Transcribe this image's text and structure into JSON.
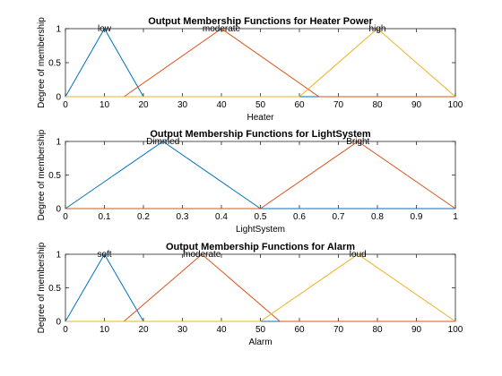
{
  "colors": {
    "series1": "#0072BD",
    "series2": "#D95319",
    "series3": "#EDB120",
    "axis": "#262626",
    "background": "#ffffff"
  },
  "chart_data": [
    {
      "type": "line",
      "title": "Output Membership Functions for Heater Power",
      "xlabel": "Heater",
      "ylabel": "Degree of membership",
      "xlim": [
        0,
        100
      ],
      "ylim": [
        0,
        1
      ],
      "xticks": [
        "0",
        "10",
        "20",
        "30",
        "40",
        "50",
        "60",
        "70",
        "80",
        "90",
        "100"
      ],
      "xtick_values": [
        0,
        10,
        20,
        30,
        40,
        50,
        60,
        70,
        80,
        90,
        100
      ],
      "yticks": [
        "0",
        "0.5",
        "1"
      ],
      "ytick_values": [
        0,
        0.5,
        1
      ],
      "grid": false,
      "series": [
        {
          "name": "low",
          "color": "#0072BD",
          "x": [
            0,
            10,
            20,
            100
          ],
          "y": [
            0,
            1,
            0,
            0
          ]
        },
        {
          "name": "moderate",
          "color": "#D95319",
          "x": [
            0,
            15,
            40,
            65,
            100
          ],
          "y": [
            0,
            0,
            1,
            0,
            0
          ]
        },
        {
          "name": "high",
          "color": "#EDB120",
          "x": [
            0,
            60,
            80,
            100
          ],
          "y": [
            0,
            0,
            1,
            0
          ]
        }
      ]
    },
    {
      "type": "line",
      "title": "Output Membership Functions for LightSystem",
      "xlabel": "LightSystem",
      "ylabel": "Degree of membership",
      "xlim": [
        0,
        1
      ],
      "ylim": [
        0,
        1
      ],
      "xticks": [
        "0",
        "0.1",
        "0.2",
        "0.3",
        "0.4",
        "0.5",
        "0.6",
        "0.7",
        "0.8",
        "0.9",
        "1"
      ],
      "xtick_values": [
        0,
        0.1,
        0.2,
        0.3,
        0.4,
        0.5,
        0.6,
        0.7,
        0.8,
        0.9,
        1
      ],
      "yticks": [
        "0",
        "0.5",
        "1"
      ],
      "ytick_values": [
        0,
        0.5,
        1
      ],
      "grid": false,
      "series": [
        {
          "name": "Dimmed",
          "color": "#0072BD",
          "x": [
            0,
            0.25,
            0.5,
            1
          ],
          "y": [
            0,
            1,
            0,
            0
          ]
        },
        {
          "name": "Bright",
          "color": "#D95319",
          "x": [
            0,
            0.5,
            0.75,
            1
          ],
          "y": [
            0,
            0,
            1,
            0
          ]
        }
      ]
    },
    {
      "type": "line",
      "title": "Output Membership Functions for Alarm",
      "xlabel": "Alarm",
      "ylabel": "Degree of membership",
      "xlim": [
        0,
        100
      ],
      "ylim": [
        0,
        1
      ],
      "xticks": [
        "0",
        "10",
        "20",
        "30",
        "40",
        "50",
        "60",
        "70",
        "80",
        "90",
        "100"
      ],
      "xtick_values": [
        0,
        10,
        20,
        30,
        40,
        50,
        60,
        70,
        80,
        90,
        100
      ],
      "yticks": [
        "0",
        "0.5",
        "1"
      ],
      "ytick_values": [
        0,
        0.5,
        1
      ],
      "grid": false,
      "series": [
        {
          "name": "soft",
          "color": "#0072BD",
          "x": [
            0,
            10,
            20,
            100
          ],
          "y": [
            0,
            1,
            0,
            0
          ]
        },
        {
          "name": "moderate",
          "color": "#D95319",
          "x": [
            0,
            15,
            35,
            55,
            100
          ],
          "y": [
            0,
            0,
            1,
            0,
            0
          ]
        },
        {
          "name": "loud",
          "color": "#EDB120",
          "x": [
            0,
            50,
            75,
            100
          ],
          "y": [
            0,
            0,
            1,
            0
          ]
        }
      ]
    }
  ]
}
